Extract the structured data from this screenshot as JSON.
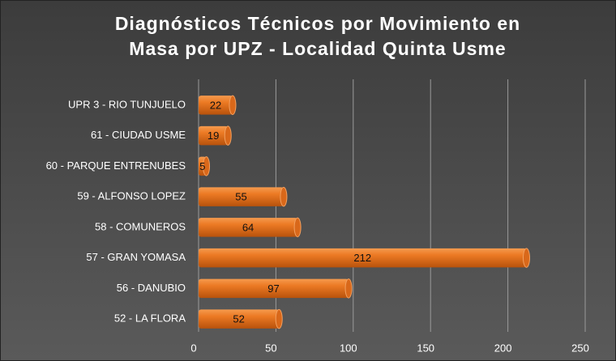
{
  "chart_data": {
    "type": "bar",
    "orientation": "horizontal",
    "title": "Diagnósticos Técnicos por Movimiento en Masa por UPZ - Localidad Quinta Usme",
    "categories": [
      "UPR 3 - RIO TUNJUELO",
      "61 - CIUDAD USME",
      "60 - PARQUE ENTRENUBES",
      "59 - ALFONSO LOPEZ",
      "58 - COMUNEROS",
      "57 - GRAN YOMASA",
      "56 - DANUBIO",
      "52 - LA FLORA"
    ],
    "values": [
      22,
      19,
      5,
      55,
      64,
      212,
      97,
      52
    ],
    "color": "#e8711c",
    "xlim": [
      0,
      250
    ],
    "xticks": [
      0,
      50,
      100,
      150,
      200,
      250
    ],
    "grid": true
  }
}
